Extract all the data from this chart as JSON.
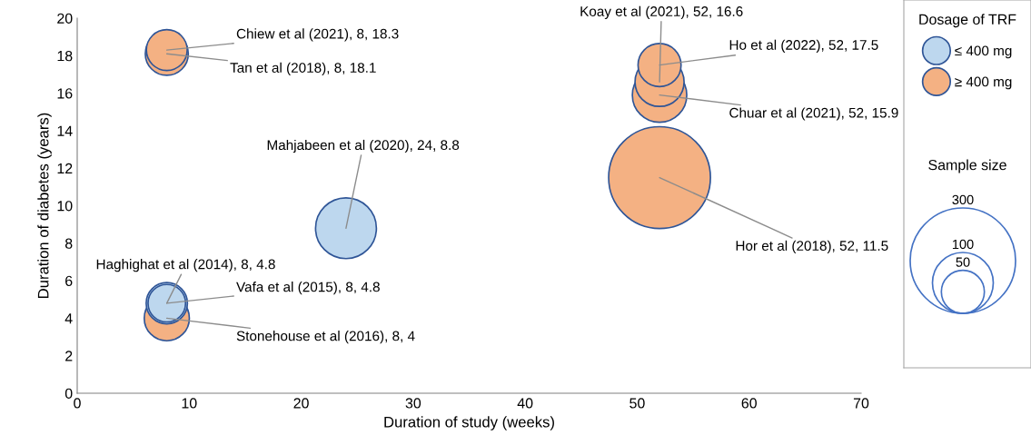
{
  "chart_data": {
    "type": "bubble",
    "xlabel": "Duration of study (weeks)",
    "ylabel": "Duration of diabetes (years)",
    "legend_title": "Dosage of TRF",
    "legend": "right",
    "xlim": [
      0,
      70
    ],
    "xticks": [
      0,
      10,
      20,
      30,
      40,
      50,
      60,
      70
    ],
    "ylim": [
      0,
      20
    ],
    "yticks": [
      0,
      2,
      4,
      6,
      8,
      10,
      12,
      14,
      16,
      18,
      20
    ],
    "grid": false,
    "size_legend": [
      300,
      100,
      50
    ],
    "series": [
      {
        "name": "≥ 400 mg",
        "color": "#f4b183",
        "x": [
          52,
          52,
          52,
          52,
          8,
          8,
          8
        ],
        "values": [
          11.5,
          15.9,
          16.6,
          17.5,
          4,
          18.1,
          18.3
        ],
        "sizes": [
          280,
          80,
          65,
          50,
          55,
          50,
          45
        ]
      },
      {
        "name": "≤ 400 mg",
        "color": "#bdd7ee",
        "x": [
          24,
          8,
          8
        ],
        "values": [
          8.8,
          4.8,
          4.8
        ],
        "sizes": [
          100,
          38,
          46
        ]
      }
    ],
    "annotations": [
      {
        "text": "Hor et al (2018), 52, 11.5",
        "x": 52,
        "y": 11.5
      },
      {
        "text": "Chuar et al (2021), 52, 15.9",
        "x": 52,
        "y": 15.9
      },
      {
        "text": "Koay et al (2021), 52, 16.6",
        "x": 52,
        "y": 16.6
      },
      {
        "text": "Ho et al (2022), 52, 17.5",
        "x": 52,
        "y": 17.5
      },
      {
        "text": "Stonehouse et al (2016), 8, 4",
        "x": 8,
        "y": 4
      },
      {
        "text": "Tan et al (2018), 8, 18.1",
        "x": 8,
        "y": 18.1
      },
      {
        "text": "Chiew et al (2021), 8, 18.3",
        "x": 8,
        "y": 18.3
      },
      {
        "text": "Mahjabeen et al (2020), 24, 8.8",
        "x": 24,
        "y": 8.8
      },
      {
        "text": "Haghighat et al (2014), 8, 4.8",
        "x": 8,
        "y": 4.8
      },
      {
        "text": "Vafa et al (2015), 8, 4.8",
        "x": 8,
        "y": 4.8
      },
      "Sample size"
    ]
  }
}
